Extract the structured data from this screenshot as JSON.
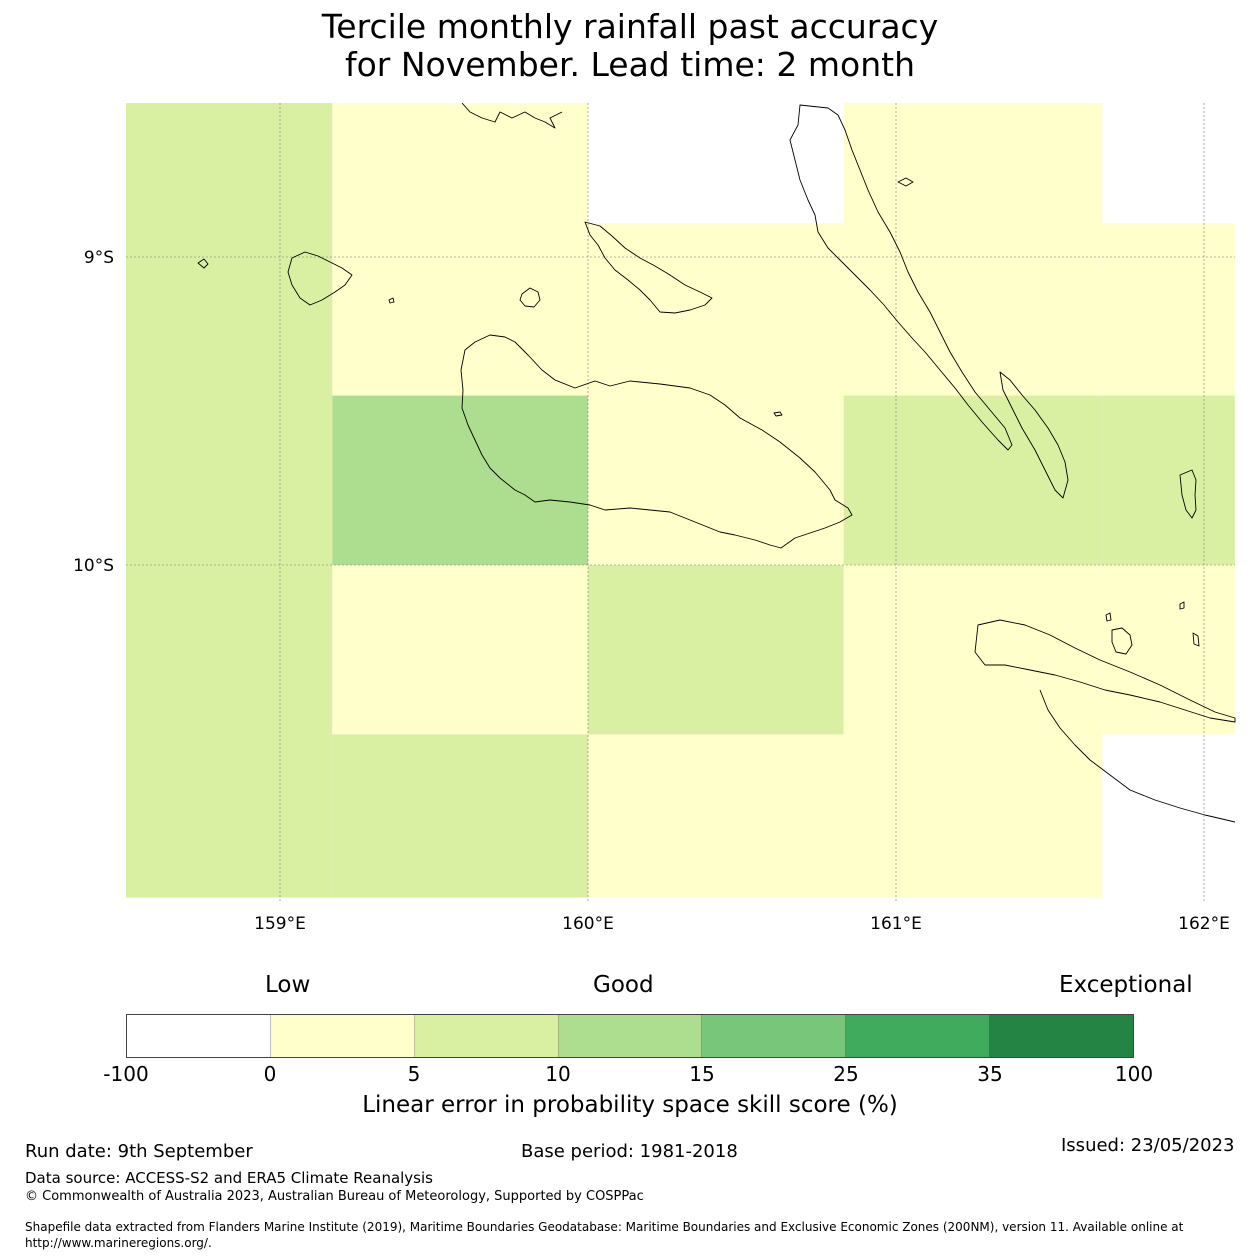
{
  "title": {
    "line1": "Tercile monthly rainfall past accuracy",
    "line2": "for November. Lead time: 2 month"
  },
  "map": {
    "lat_labels": [
      "9°S",
      "10°S"
    ],
    "lon_labels": [
      "159°E",
      "160°E",
      "161°E",
      "162°E"
    ],
    "grid_cells": [
      {
        "lon": [
          158.5,
          159.17
        ],
        "lat": [
          -8.5,
          -11.08
        ],
        "class": "5-10"
      },
      {
        "lon": [
          159.17,
          160.0
        ],
        "lat": [
          -8.5,
          -9.45
        ],
        "class": "0-5"
      },
      {
        "lon": [
          159.17,
          160.0
        ],
        "lat": [
          -9.45,
          -10.0
        ],
        "class": "10-15"
      },
      {
        "lon": [
          159.17,
          160.0
        ],
        "lat": [
          -10.0,
          -10.55
        ],
        "class": "0-5"
      },
      {
        "lon": [
          159.17,
          160.0
        ],
        "lat": [
          -10.55,
          -11.08
        ],
        "class": "5-10"
      },
      {
        "lon": [
          160.0,
          160.83
        ],
        "lat": [
          -8.89,
          -9.45
        ],
        "class": "0-5"
      },
      {
        "lon": [
          160.0,
          160.83
        ],
        "lat": [
          -9.45,
          -10.0
        ],
        "class": "0-5"
      },
      {
        "lon": [
          160.0,
          160.83
        ],
        "lat": [
          -10.0,
          -10.55
        ],
        "class": "5-10"
      },
      {
        "lon": [
          160.0,
          160.83
        ],
        "lat": [
          -10.55,
          -11.08
        ],
        "class": "0-5"
      },
      {
        "lon": [
          160.83,
          161.67
        ],
        "lat": [
          -8.5,
          -9.45
        ],
        "class": "0-5"
      },
      {
        "lon": [
          160.83,
          161.67
        ],
        "lat": [
          -9.45,
          -10.0
        ],
        "class": "5-10"
      },
      {
        "lon": [
          160.83,
          161.67
        ],
        "lat": [
          -10.0,
          -11.08
        ],
        "class": "0-5"
      },
      {
        "lon": [
          161.67,
          162.1
        ],
        "lat": [
          -8.89,
          -9.45
        ],
        "class": "0-5"
      },
      {
        "lon": [
          161.67,
          162.1
        ],
        "lat": [
          -9.45,
          -10.0
        ],
        "class": "5-10"
      },
      {
        "lon": [
          161.67,
          162.1
        ],
        "lat": [
          -10.0,
          -10.55
        ],
        "class": "0-5"
      }
    ],
    "class_colors": {
      "below-0": "#ffffff",
      "0-5": "#ffffcc",
      "5-10": "#d9f0a3",
      "10-15": "#addd8e",
      "15-25": "#78c679",
      "25-35": "#41ab5d",
      "35-100": "#238443"
    },
    "coastline_color": "#000000"
  },
  "colorbar": {
    "words": [
      "Low",
      "Good",
      "Exceptional"
    ],
    "ticks": [
      "-100",
      "0",
      "5",
      "10",
      "15",
      "25",
      "35",
      "100"
    ],
    "colors": [
      "#ffffff",
      "#ffffcc",
      "#d9f0a3",
      "#addd8e",
      "#78c679",
      "#41ab5d",
      "#238443"
    ],
    "label": "Linear error in probability space skill score (%)"
  },
  "footer": {
    "run_date": "Run date: 9th September",
    "base_period": "Base period: 1981-2018",
    "issued": "Issued: 23/05/2023",
    "data_source": "Data source: ACCESS-S2 and ERA5 Climate Reanalysis",
    "copyright": "© Commonwealth of Australia 2023, Australian Bureau of Meteorology, Supported by COSPPac",
    "shapefile_line1": "Shapefile data extracted from Flanders Marine Institute (2019), Maritime Boundaries Geodatabase: Maritime Boundaries and Exclusive Economic Zones (200NM), version 11. Available online at",
    "shapefile_line2": "http://www.marineregions.org/."
  }
}
